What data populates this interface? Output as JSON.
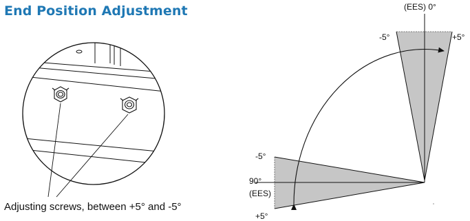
{
  "title": "End Position Adjustment",
  "caption": "Adjusting screws, between +5° and -5°",
  "angle_labels": {
    "top_center": "(EES) 0°",
    "top_minus": "-5°",
    "top_plus": "+5°",
    "left_minus": "-5°",
    "left_ninety": "90°",
    "left_ees": "(EES)",
    "left_plus": "+5°"
  },
  "colors": {
    "title": "#1f78b4",
    "wedge": "#c6c6c6",
    "line": "#111111"
  }
}
